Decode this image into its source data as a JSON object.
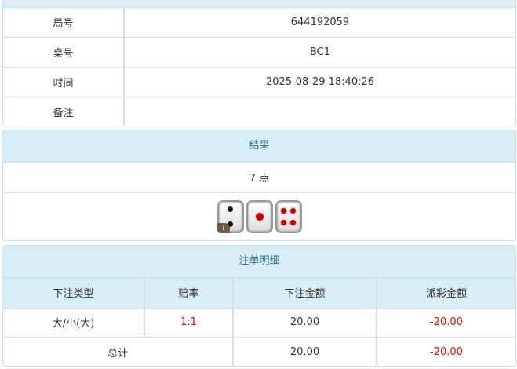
{
  "info": {
    "rows": [
      {
        "label": "局号",
        "value": "644192059"
      },
      {
        "label": "桌号",
        "value": "BC1"
      },
      {
        "label": "时间",
        "value": "2025-08-29 18:40:26"
      },
      {
        "label": "备注",
        "value": ""
      }
    ]
  },
  "result": {
    "title": "结果",
    "points": "7 点",
    "dice": [
      2,
      1,
      4
    ],
    "badge": "i"
  },
  "bets": {
    "title": "注单明细",
    "headers": [
      "下注类型",
      "赔率",
      "下注金额",
      "派彩金额"
    ],
    "rows": [
      {
        "type": "大/小(大)",
        "odds": "1:1",
        "amount": "20.00",
        "payout": "-20.00"
      }
    ],
    "total": {
      "label": "总计",
      "amount": "20.00",
      "payout": "-20.00"
    }
  },
  "colors": {
    "header_bg": "#d9edf7",
    "header_text": "#31708f",
    "negative": "#e00000"
  }
}
